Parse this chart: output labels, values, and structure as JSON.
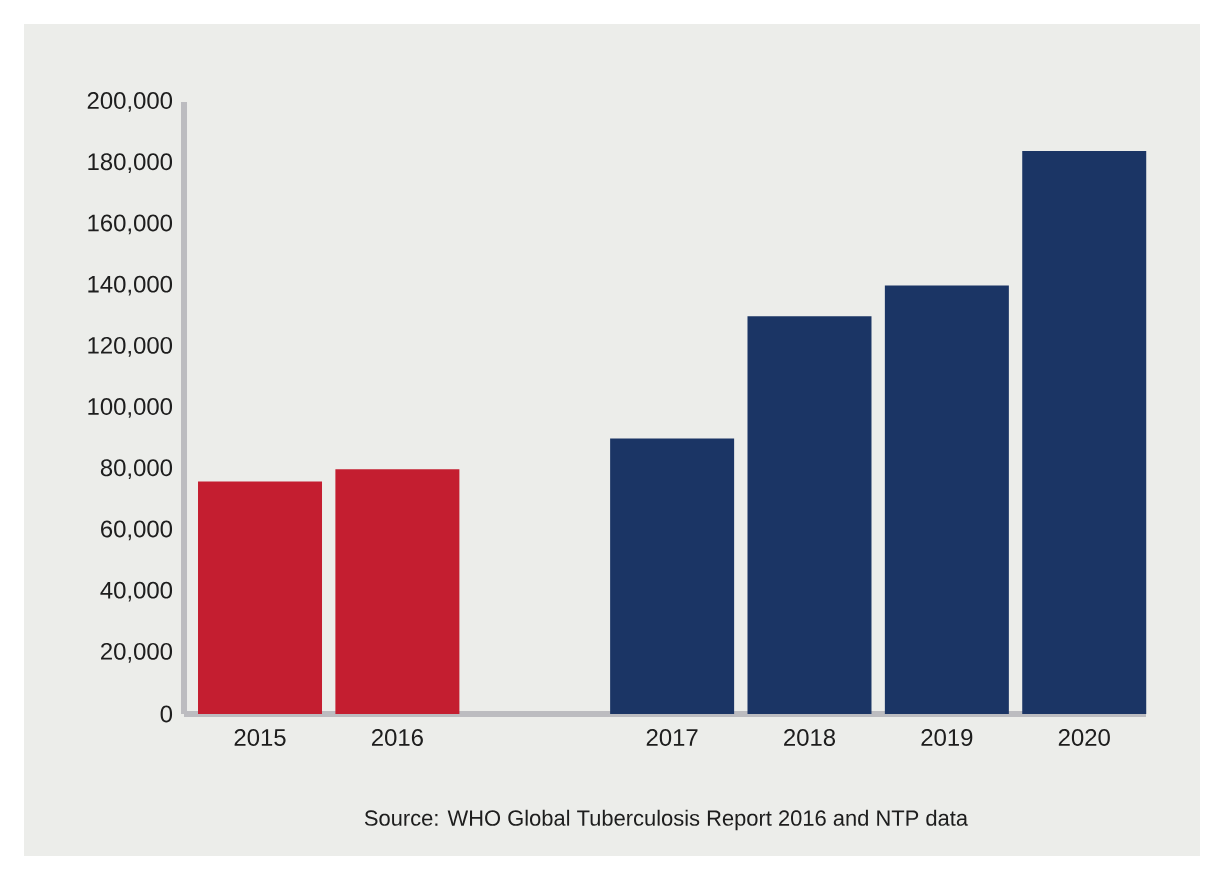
{
  "chart_data": {
    "type": "bar",
    "categories": [
      "2015",
      "2016",
      null,
      "2017",
      "2018",
      "2019",
      "2020"
    ],
    "values": [
      76000,
      80000,
      null,
      90000,
      130000,
      140000,
      184000
    ],
    "colors": [
      "#c41e30",
      "#c41e30",
      null,
      "#1b3565",
      "#1b3565",
      "#1b3565",
      "#1b3565"
    ],
    "ylim": [
      0,
      200000
    ],
    "yticks": [
      0,
      {
        "value": 20000,
        "label": "20,000"
      },
      {
        "value": 40000,
        "label": "40,000"
      },
      {
        "value": 60000,
        "label": "60,000"
      },
      {
        "value": 80000,
        "label": "80,000"
      },
      {
        "value": 100000,
        "label": "100,000"
      },
      {
        "value": 120000,
        "label": "120,000"
      },
      {
        "value": 140000,
        "label": "140,000"
      },
      {
        "value": 160000,
        "label": "160,000"
      },
      {
        "value": 180000,
        "label": "180,000"
      },
      {
        "value": 200000,
        "label": "200,000"
      }
    ],
    "annotations": [
      "Source: WHO Global Tuberculosis Report 2016 and NTP data"
    ]
  }
}
